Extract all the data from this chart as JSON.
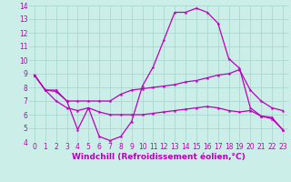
{
  "xlabel": "Windchill (Refroidissement éolien,°C)",
  "xlim": [
    -0.5,
    23.5
  ],
  "ylim": [
    4,
    14
  ],
  "xticks": [
    0,
    1,
    2,
    3,
    4,
    5,
    6,
    7,
    8,
    9,
    10,
    11,
    12,
    13,
    14,
    15,
    16,
    17,
    18,
    19,
    20,
    21,
    22,
    23
  ],
  "yticks": [
    4,
    5,
    6,
    7,
    8,
    9,
    10,
    11,
    12,
    13,
    14
  ],
  "background_color": "#cceee8",
  "line_color": "#bb00bb",
  "grid_color": "#aad8d0",
  "line1_x": [
    0,
    1,
    2,
    3,
    4,
    5,
    6,
    7,
    8,
    9,
    10,
    11,
    12,
    13,
    14,
    15,
    16,
    17,
    18,
    19,
    20,
    21,
    22,
    23
  ],
  "line1_y": [
    8.9,
    7.8,
    7.8,
    7.0,
    4.9,
    6.5,
    4.4,
    4.1,
    4.4,
    5.5,
    8.1,
    9.5,
    11.5,
    13.5,
    13.5,
    13.8,
    13.5,
    12.7,
    10.1,
    9.4,
    6.5,
    5.9,
    5.8,
    4.9
  ],
  "line2_x": [
    0,
    1,
    2,
    3,
    4,
    5,
    6,
    7,
    8,
    9,
    10,
    11,
    12,
    13,
    14,
    15,
    16,
    17,
    18,
    19,
    20,
    21,
    22,
    23
  ],
  "line2_y": [
    8.9,
    7.8,
    7.7,
    7.0,
    7.0,
    7.0,
    7.0,
    7.0,
    7.5,
    7.8,
    7.9,
    8.0,
    8.1,
    8.2,
    8.4,
    8.5,
    8.7,
    8.9,
    9.0,
    9.3,
    7.8,
    7.0,
    6.5,
    6.3
  ],
  "line3_x": [
    0,
    1,
    2,
    3,
    4,
    5,
    6,
    7,
    8,
    9,
    10,
    11,
    12,
    13,
    14,
    15,
    16,
    17,
    18,
    19,
    20,
    21,
    22,
    23
  ],
  "line3_y": [
    8.9,
    7.8,
    7.0,
    6.5,
    6.3,
    6.5,
    6.2,
    6.0,
    6.0,
    6.0,
    6.0,
    6.1,
    6.2,
    6.3,
    6.4,
    6.5,
    6.6,
    6.5,
    6.3,
    6.2,
    6.3,
    5.9,
    5.7,
    4.9
  ],
  "tick_fontsize": 5.5,
  "xlabel_fontsize": 6.5,
  "marker": "*",
  "markersize": 3
}
